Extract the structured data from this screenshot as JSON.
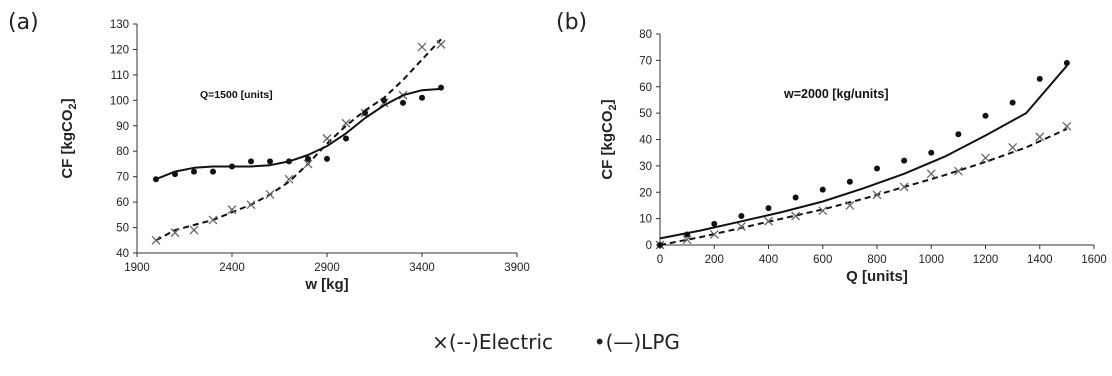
{
  "panels": {
    "a": "(a)",
    "b": "(b)"
  },
  "legend": {
    "electric_marker": "×",
    "electric_line": "(--)",
    "electric_label": "Electric",
    "lpg_marker": "•",
    "lpg_line": "(—)",
    "lpg_label": "LPG"
  },
  "chart_data": [
    {
      "type": "scatter",
      "panel": "(a)",
      "annotation": "Q=1500 [units]",
      "xlabel": "w [kg]",
      "ylabel_base": "CF [kgCO",
      "ylabel_sub": "2",
      "ylabel_end": "]",
      "xlim": [
        1900,
        3900
      ],
      "ylim": [
        40,
        130
      ],
      "xticks": [
        1900,
        2400,
        2900,
        3400,
        3900
      ],
      "yticks": [
        40,
        50,
        60,
        70,
        80,
        90,
        100,
        110,
        120,
        130
      ],
      "grid": false,
      "series": [
        {
          "name": "Electric",
          "marker": "x",
          "fit": "dashed",
          "points": [
            [
              2000,
              45
            ],
            [
              2100,
              48
            ],
            [
              2200,
              49
            ],
            [
              2300,
              53
            ],
            [
              2400,
              57
            ],
            [
              2500,
              59
            ],
            [
              2600,
              63
            ],
            [
              2700,
              69
            ],
            [
              2800,
              75
            ],
            [
              2900,
              85
            ],
            [
              3000,
              91
            ],
            [
              3100,
              95
            ],
            [
              3200,
              99
            ],
            [
              3300,
              102
            ],
            [
              3400,
              121
            ],
            [
              3500,
              122
            ]
          ],
          "fit_curve": [
            [
              2000,
              45
            ],
            [
              2100,
              49
            ],
            [
              2200,
              51
            ],
            [
              2300,
              53
            ],
            [
              2400,
              56
            ],
            [
              2500,
              59
            ],
            [
              2600,
              63
            ],
            [
              2700,
              68
            ],
            [
              2800,
              75
            ],
            [
              2900,
              83
            ],
            [
              3000,
              90
            ],
            [
              3100,
              96
            ],
            [
              3200,
              101
            ],
            [
              3300,
              108
            ],
            [
              3400,
              116
            ],
            [
              3500,
              124
            ]
          ]
        },
        {
          "name": "LPG",
          "marker": "dot",
          "fit": "solid",
          "points": [
            [
              2000,
              69
            ],
            [
              2100,
              71
            ],
            [
              2200,
              72
            ],
            [
              2300,
              72
            ],
            [
              2400,
              74
            ],
            [
              2500,
              76
            ],
            [
              2600,
              76
            ],
            [
              2700,
              76
            ],
            [
              2800,
              77
            ],
            [
              2900,
              77
            ],
            [
              3000,
              85
            ],
            [
              3100,
              95
            ],
            [
              3200,
              100
            ],
            [
              3300,
              99
            ],
            [
              3400,
              101
            ],
            [
              3500,
              105
            ]
          ],
          "fit_curve": [
            [
              2000,
              69
            ],
            [
              2100,
              72
            ],
            [
              2200,
              73.5
            ],
            [
              2300,
              74
            ],
            [
              2400,
              74
            ],
            [
              2500,
              74
            ],
            [
              2600,
              74.5
            ],
            [
              2700,
              76
            ],
            [
              2800,
              78.5
            ],
            [
              2900,
              82
            ],
            [
              3000,
              87
            ],
            [
              3100,
              93
            ],
            [
              3200,
              98
            ],
            [
              3300,
              102
            ],
            [
              3400,
              104
            ],
            [
              3500,
              104.5
            ]
          ]
        }
      ]
    },
    {
      "type": "scatter",
      "panel": "(b)",
      "annotation": "w=2000 [kg/units]",
      "xlabel": "Q [units]",
      "ylabel_base": "CF [kgCO",
      "ylabel_sub": "2",
      "ylabel_end": "]",
      "xlim": [
        0,
        1600
      ],
      "ylim": [
        0,
        80
      ],
      "xticks": [
        0,
        200,
        400,
        600,
        800,
        1000,
        1200,
        1400,
        1600
      ],
      "yticks": [
        0,
        10,
        20,
        30,
        40,
        50,
        60,
        70,
        80
      ],
      "grid": false,
      "series": [
        {
          "name": "Electric",
          "marker": "x",
          "fit": "dashed",
          "points": [
            [
              0,
              0
            ],
            [
              100,
              2
            ],
            [
              200,
              4
            ],
            [
              300,
              7
            ],
            [
              400,
              9
            ],
            [
              500,
              11
            ],
            [
              600,
              13
            ],
            [
              700,
              15
            ],
            [
              800,
              19
            ],
            [
              900,
              22
            ],
            [
              1000,
              27
            ],
            [
              1100,
              28
            ],
            [
              1200,
              33
            ],
            [
              1300,
              37
            ],
            [
              1400,
              41
            ],
            [
              1500,
              45
            ]
          ],
          "fit_curve": [
            [
              0,
              0
            ],
            [
              150,
              3
            ],
            [
              300,
              6.5
            ],
            [
              450,
              10
            ],
            [
              600,
              13.5
            ],
            [
              750,
              17.5
            ],
            [
              900,
              22
            ],
            [
              1050,
              26.5
            ],
            [
              1200,
              31.5
            ],
            [
              1350,
              37
            ],
            [
              1500,
              44
            ]
          ]
        },
        {
          "name": "LPG",
          "marker": "dot",
          "fit": "solid",
          "points": [
            [
              0,
              0
            ],
            [
              100,
              4
            ],
            [
              200,
              8
            ],
            [
              300,
              11
            ],
            [
              400,
              14
            ],
            [
              500,
              18
            ],
            [
              600,
              21
            ],
            [
              700,
              24
            ],
            [
              800,
              29
            ],
            [
              900,
              32
            ],
            [
              1000,
              35
            ],
            [
              1100,
              42
            ],
            [
              1200,
              49
            ],
            [
              1300,
              54
            ],
            [
              1400,
              63
            ],
            [
              1500,
              69
            ]
          ],
          "fit_curve": [
            [
              0,
              2.5
            ],
            [
              150,
              5.5
            ],
            [
              300,
              9
            ],
            [
              450,
              12.5
            ],
            [
              600,
              16.5
            ],
            [
              750,
              21.5
            ],
            [
              900,
              27
            ],
            [
              1050,
              33.5
            ],
            [
              1200,
              41.5
            ],
            [
              1350,
              50
            ],
            [
              1500,
              68
            ]
          ]
        }
      ]
    }
  ]
}
